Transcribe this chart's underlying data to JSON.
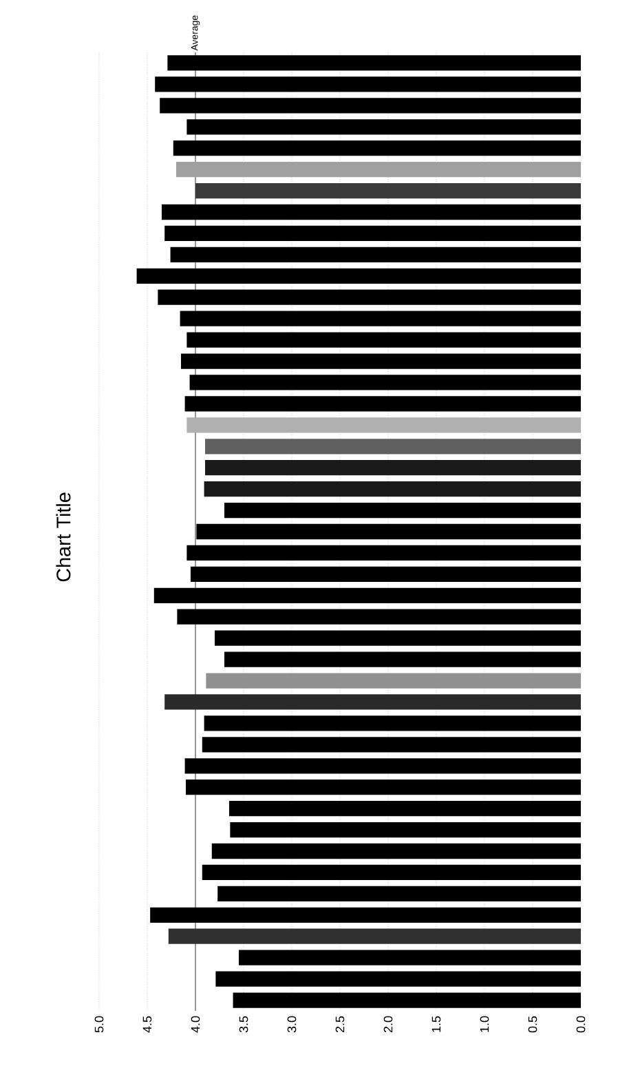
{
  "chart_data": {
    "type": "bar",
    "orientation": "horizontal",
    "title": "Chart Title",
    "categories": [
      null,
      null,
      null,
      null,
      null,
      null,
      null,
      null,
      null,
      null,
      null,
      null,
      null,
      null,
      null,
      null,
      null,
      null,
      null,
      null,
      null,
      null,
      null,
      null,
      null,
      null,
      null,
      null,
      null,
      null,
      null,
      null,
      null,
      null,
      null,
      null,
      null,
      null,
      null,
      null,
      null,
      null,
      null,
      null,
      null
    ],
    "values": [
      4.29,
      4.42,
      4.37,
      4.09,
      4.23,
      4.2,
      4.0,
      4.35,
      4.32,
      4.26,
      4.61,
      4.39,
      4.16,
      4.09,
      4.15,
      4.06,
      4.11,
      4.09,
      3.9,
      3.9,
      3.91,
      3.7,
      3.99,
      4.09,
      4.05,
      4.43,
      4.19,
      3.8,
      3.7,
      3.89,
      4.32,
      3.91,
      3.93,
      4.11,
      4.1,
      3.65,
      3.64,
      3.83,
      3.93,
      3.77,
      4.47,
      4.28,
      3.55,
      3.79,
      3.61
    ],
    "colors": [
      "#000000",
      "#000000",
      "#000000",
      "#000000",
      "#000000",
      "#a0a0a0",
      "#3a3a3a",
      "#000000",
      "#000000",
      "#000000",
      "#000000",
      "#000000",
      "#000000",
      "#000000",
      "#000000",
      "#000000",
      "#000000",
      "#b0b0b0",
      "#606060",
      "#1a1a1a",
      "#1a1a1a",
      "#000000",
      "#000000",
      "#000000",
      "#000000",
      "#000000",
      "#000000",
      "#000000",
      "#000000",
      "#909090",
      "#2a2a2a",
      "#000000",
      "#000000",
      "#000000",
      "#000000",
      "#000000",
      "#000000",
      "#000000",
      "#000000",
      "#000000",
      "#000000",
      "#303030",
      "#000000",
      "#000000",
      "#000000"
    ],
    "xlim": [
      5,
      0
    ],
    "xticks": [
      {
        "value": 5,
        "label": "5.0"
      },
      {
        "value": 4.5,
        "label": "4.5"
      },
      {
        "value": 4,
        "label": "4.0"
      },
      {
        "value": 3.5,
        "label": "3.5"
      },
      {
        "value": 3,
        "label": "3.0"
      },
      {
        "value": 2.5,
        "label": "2.5"
      },
      {
        "value": 2,
        "label": "2.0"
      },
      {
        "value": 1.5,
        "label": "1.5"
      },
      {
        "value": 1,
        "label": "1.0"
      },
      {
        "value": 0.5,
        "label": "0.5"
      },
      {
        "value": 0,
        "label": "0.0"
      }
    ],
    "grid": "x",
    "ref_lines": [
      {
        "axis": "x",
        "value": 4.0,
        "label": "Average",
        "color": "#808080"
      }
    ]
  }
}
